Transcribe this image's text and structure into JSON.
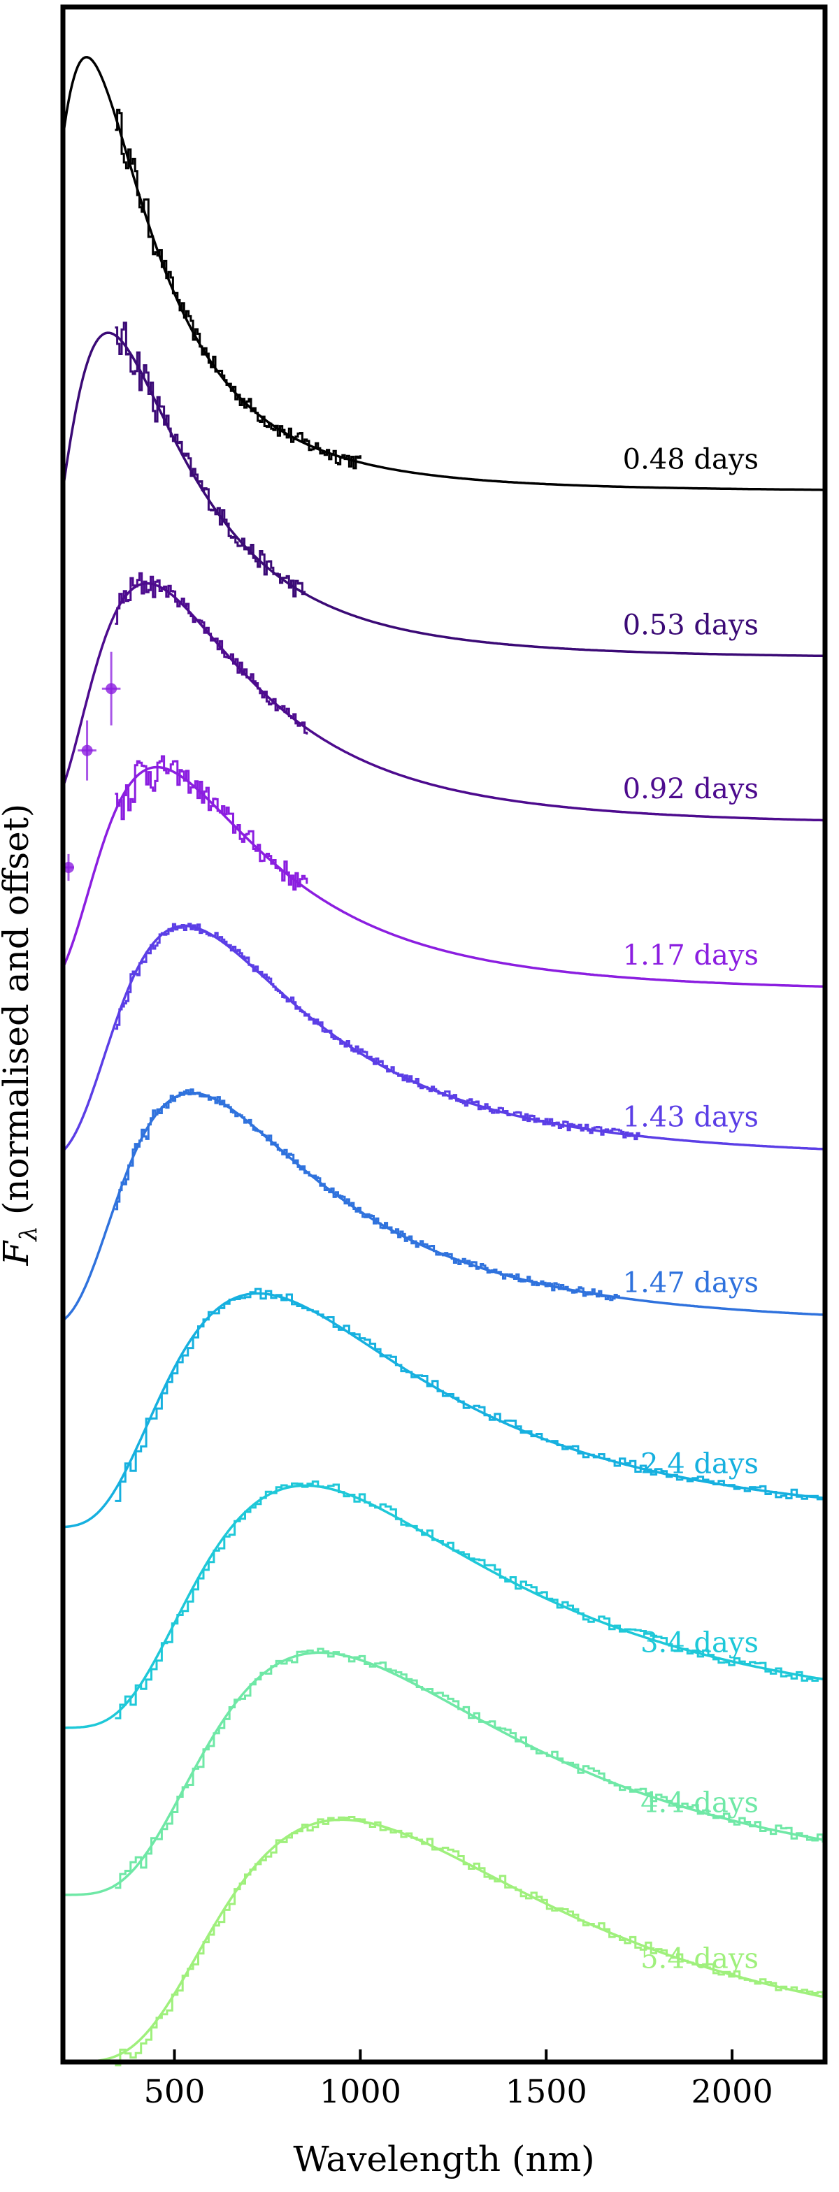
{
  "chart_data": {
    "type": "line",
    "title": "",
    "xlabel": "Wavelength (nm)",
    "ylabel_symbol": "F",
    "ylabel_subscript": "λ",
    "ylabel_rest": " (normalised and offset)",
    "xlim": [
      200,
      2250
    ],
    "ylim": [
      0,
      12.3
    ],
    "xticks": [
      500,
      1000,
      1500,
      2000
    ],
    "xtick_labels": [
      "500",
      "1000",
      "1500",
      "2000"
    ],
    "grid": false,
    "series": [
      {
        "name": "0.48 days",
        "label": "0.48 days",
        "color": "#000000",
        "offset": 9.4,
        "T": 11000,
        "amp": 2.6,
        "spec_end": 1000,
        "noise": 0.05,
        "photometry": []
      },
      {
        "name": "0.53 days",
        "label": "0.53 days",
        "color": "#3b0a76",
        "offset": 8.4,
        "T": 9000,
        "amp": 1.95,
        "spec_end": 850,
        "noise": 0.06,
        "photometry": []
      },
      {
        "name": "0.92 days",
        "label": "0.92 days",
        "color": "#4d0b8e",
        "offset": 7.4,
        "T": 6800,
        "amp": 1.45,
        "spec_end": 860,
        "noise": 0.04,
        "photometry": []
      },
      {
        "name": "1.17 days",
        "label": "1.17 days",
        "color": "#8b1ee0",
        "offset": 6.4,
        "T": 6400,
        "amp": 1.35,
        "spec_end": 860,
        "noise": 0.07,
        "photometry": [
          {
            "x": 330,
            "y": 8.22,
            "xerr": 25,
            "yerr": 0.22
          },
          {
            "x": 265,
            "y": 7.85,
            "xerr": 25,
            "yerr": 0.18
          },
          {
            "x": 215,
            "y": 7.15,
            "xerr": 15,
            "yerr": 0.08
          }
        ]
      },
      {
        "name": "1.43 days",
        "label": "1.43 days",
        "color": "#5b3ee6",
        "offset": 5.4,
        "T": 5500,
        "amp": 1.4,
        "spec_end": 1750,
        "noise": 0.025,
        "photometry": []
      },
      {
        "name": "1.47 days",
        "label": "1.47 days",
        "color": "#2f72dd",
        "offset": 4.4,
        "T": 5300,
        "amp": 1.4,
        "spec_end": 1700,
        "noise": 0.025,
        "photometry": []
      },
      {
        "name": "2.4 days",
        "label": "2.4 days",
        "color": "#16b0df",
        "offset": 3.2,
        "T": 4000,
        "amp": 1.4,
        "spec_end": 2250,
        "noise": 0.03,
        "photometry": []
      },
      {
        "name": "3.4 days",
        "label": "3.4 days",
        "color": "#1ec8d8",
        "offset": 2.0,
        "T": 3400,
        "amp": 1.45,
        "spec_end": 2250,
        "noise": 0.03,
        "photometry": []
      },
      {
        "name": "4.4 days",
        "label": "4.4 days",
        "color": "#6fe8a6",
        "offset": 1.0,
        "T": 3250,
        "amp": 1.45,
        "spec_end": 2250,
        "noise": 0.03,
        "photometry": []
      },
      {
        "name": "5.4 days",
        "label": "5.4 days",
        "color": "#9ff07c",
        "offset": 0.0,
        "T": 3050,
        "amp": 1.45,
        "spec_end": 2250,
        "noise": 0.03,
        "photometry": []
      }
    ]
  }
}
